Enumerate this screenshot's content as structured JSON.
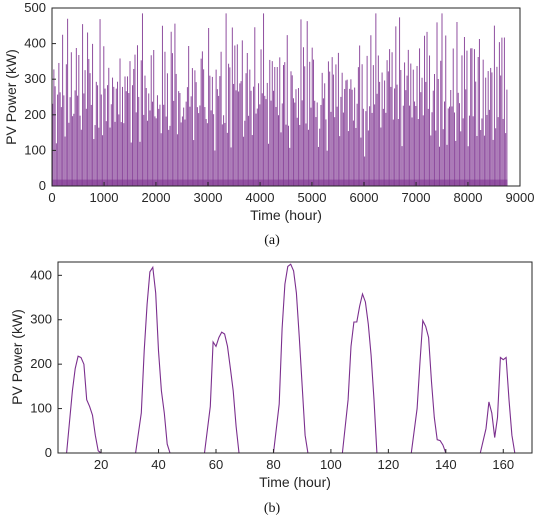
{
  "colors": {
    "series": "#7B2F8E",
    "axis": "#262626"
  },
  "chart_data": [
    {
      "type": "line",
      "caption": "(a)",
      "xlabel": "Time (hour)",
      "ylabel": "PV Power (kW)",
      "xlim": [
        0,
        9000
      ],
      "ylim": [
        0,
        500
      ],
      "xticks": [
        "0",
        "1000",
        "2000",
        "3000",
        "4000",
        "5000",
        "6000",
        "7000",
        "8000",
        "9000"
      ],
      "yticks": [
        "0",
        "100",
        "200",
        "300",
        "400",
        "500"
      ],
      "grid": false,
      "series": [
        {
          "x_range": [
            0,
            8760
          ],
          "sampling": "hourly",
          "pattern": "daily solar cycle, peaks mostly 150–450 kW, maximum near 490 kW",
          "daily_peaks_sample": [
            420,
            310,
            395,
            180,
            270,
            410,
            360,
            230,
            440,
            300,
            150,
            380,
            470,
            260,
            330,
            400,
            210,
            350,
            290,
            480,
            240,
            370,
            320,
            190,
            430,
            280,
            360,
            250,
            410,
            340
          ]
        }
      ]
    },
    {
      "type": "line",
      "caption": "(b)",
      "xlabel": "Time (hour)",
      "ylabel": "PV Power (kW)",
      "xlim": [
        5,
        170
      ],
      "ylim": [
        0,
        430
      ],
      "xticks": [
        "20",
        "40",
        "60",
        "80",
        "100",
        "120",
        "140",
        "160"
      ],
      "yticks": [
        "0",
        "100",
        "200",
        "300",
        "400"
      ],
      "grid": false,
      "series": [
        {
          "x": [
            5,
            8,
            10,
            11,
            12,
            13,
            14,
            15,
            16,
            17,
            18,
            19,
            20,
            32,
            34,
            35,
            36,
            37,
            38,
            39,
            40,
            41,
            42,
            43,
            44,
            56,
            58,
            59,
            60,
            61,
            62,
            63,
            64,
            65,
            66,
            67,
            68,
            80,
            82,
            83,
            84,
            85,
            86,
            87,
            88,
            89,
            90,
            91,
            92,
            104,
            106,
            107,
            108,
            109,
            110,
            111,
            112,
            113,
            114,
            115,
            116,
            128,
            130,
            131,
            132,
            133,
            134,
            135,
            136,
            137,
            138,
            139,
            140,
            152,
            154,
            155,
            156,
            157,
            158,
            159,
            160,
            161,
            162,
            163,
            164,
            170
          ],
          "y": [
            0,
            0,
            140,
            190,
            218,
            215,
            200,
            120,
            105,
            85,
            40,
            5,
            0,
            0,
            90,
            230,
            335,
            408,
            418,
            360,
            230,
            140,
            90,
            20,
            0,
            0,
            105,
            250,
            240,
            260,
            272,
            268,
            240,
            190,
            140,
            60,
            0,
            0,
            110,
            280,
            380,
            420,
            425,
            410,
            360,
            260,
            150,
            40,
            0,
            0,
            120,
            240,
            295,
            295,
            330,
            358,
            340,
            290,
            220,
            120,
            0,
            0,
            100,
            205,
            298,
            285,
            260,
            160,
            80,
            30,
            28,
            18,
            0,
            0,
            55,
            115,
            90,
            35,
            80,
            215,
            210,
            215,
            120,
            40,
            0,
            0
          ]
        }
      ]
    }
  ]
}
